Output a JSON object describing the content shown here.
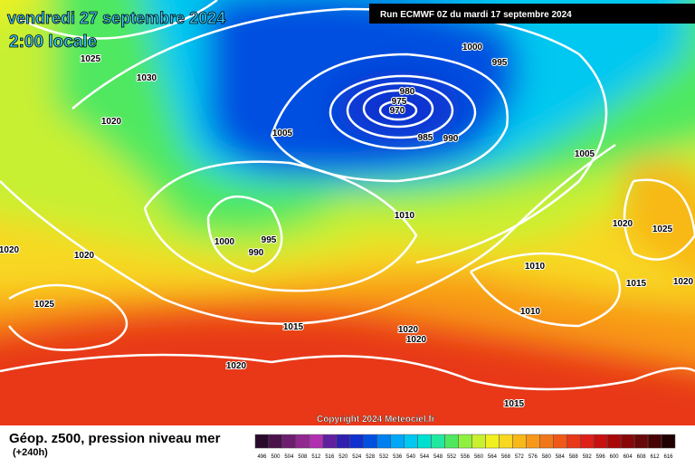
{
  "header": {
    "title": "vendredi 27 septembre 2024",
    "subtitle": "2:00 locale",
    "run": "Run ECMWF 0Z du mardi 17 septembre 2024"
  },
  "isobars": [
    1025,
    1030,
    1020,
    1005,
    1000,
    995,
    980,
    975,
    970,
    985,
    990,
    1005,
    1010,
    1020,
    1025,
    995,
    1000,
    990,
    1020,
    1020,
    1010,
    1015,
    1020,
    1025,
    1010,
    1015,
    1020,
    1020,
    1020,
    1015
  ],
  "copyright": "Copyright 2024 Meteociel.fr",
  "legend": {
    "title": "Géop. z500, pression niveau mer",
    "lead": "(+240h)",
    "ticks": [
      496,
      500,
      504,
      508,
      512,
      516,
      520,
      524,
      528,
      532,
      536,
      540,
      544,
      548,
      552,
      556,
      560,
      564,
      568,
      572,
      576,
      580,
      584,
      588,
      592,
      596,
      600,
      604,
      608,
      612,
      616
    ],
    "colors": [
      "#2a0a2a",
      "#4a124a",
      "#6e1e6e",
      "#902890",
      "#b030b0",
      "#6020a0",
      "#3020b0",
      "#1030d0",
      "#0050e0",
      "#0080f0",
      "#00a8f8",
      "#00c8f0",
      "#00e0d0",
      "#20e8a0",
      "#50e860",
      "#90f040",
      "#c8f030",
      "#f0f020",
      "#f8d820",
      "#f8b818",
      "#f89818",
      "#f07818",
      "#f05818",
      "#e83818",
      "#e02018",
      "#c81010",
      "#a80808",
      "#880808",
      "#680808",
      "#480404",
      "#200000"
    ]
  }
}
